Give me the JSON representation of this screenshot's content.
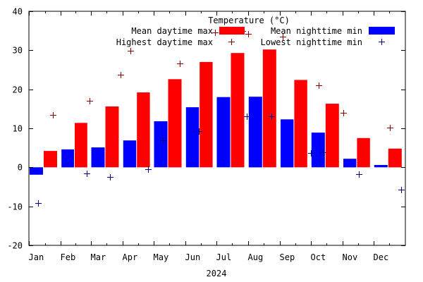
{
  "chart_data": {
    "type": "bar",
    "title": "",
    "xlabel": "2024",
    "ylabel": "",
    "ylim": [
      -20,
      40
    ],
    "yticks": [
      -20,
      -10,
      0,
      10,
      20,
      30,
      40
    ],
    "ytick_labels": [
      "-20",
      "-10",
      "0",
      "10",
      "20",
      "30",
      "40"
    ],
    "xlim_days": [
      0,
      366
    ],
    "categories": [
      "Jan",
      "Feb",
      "Mar",
      "Apr",
      "May",
      "Jun",
      "Jul",
      "Aug",
      "Sep",
      "Oct",
      "Nov",
      "Dec"
    ],
    "month_start_day": [
      0,
      31,
      60,
      91,
      121,
      152,
      182,
      213,
      244,
      274,
      305,
      335
    ],
    "grid": false,
    "legend": {
      "title": "Temperature (°C)",
      "placement": "top-right",
      "entries": [
        {
          "label": "Mean daytime max",
          "series": "mean_max"
        },
        {
          "label": "Mean nighttime min",
          "series": "mean_min"
        },
        {
          "label": "Highest daytime max",
          "series": "highest_max"
        },
        {
          "label": "Lowest nighttime min",
          "series": "lowest_min"
        }
      ]
    },
    "series": [
      {
        "key": "mean_min",
        "name": "Mean nighttime min",
        "kind": "bar",
        "color": "#0000ff",
        "values": [
          -1.9,
          4.6,
          5.1,
          6.9,
          11.8,
          15.4,
          18.0,
          18.1,
          12.3,
          8.9,
          2.2,
          0.6
        ]
      },
      {
        "key": "mean_max",
        "name": "Mean daytime max",
        "kind": "bar",
        "color": "#ff0000",
        "values": [
          4.2,
          11.4,
          15.6,
          19.2,
          22.6,
          27.0,
          29.3,
          30.2,
          22.4,
          16.3,
          7.5,
          4.8
        ]
      },
      {
        "key": "highest_max",
        "name": "Highest daytime max",
        "kind": "point",
        "marker": "+",
        "color": "#8b0000",
        "day_of_year": [
          23,
          59,
          89,
          99,
          147,
          181,
          208,
          213,
          247,
          282,
          306,
          351
        ],
        "values": [
          13.5,
          17.1,
          23.7,
          29.9,
          26.7,
          34.6,
          34.9,
          34.2,
          33.5,
          21.1,
          13.9,
          10.1
        ]
      },
      {
        "key": "lowest_min",
        "name": "Lowest nighttime min",
        "kind": "point",
        "marker": "+",
        "color": "#00008b",
        "day_of_year": [
          9,
          56,
          79,
          116,
          130,
          165,
          212,
          236,
          274,
          286,
          321,
          362
        ],
        "values": [
          -9.2,
          -1.6,
          -2.5,
          -0.4,
          6.9,
          9.3,
          13.1,
          13.1,
          3.7,
          3.9,
          -1.8,
          -5.7
        ]
      }
    ]
  }
}
